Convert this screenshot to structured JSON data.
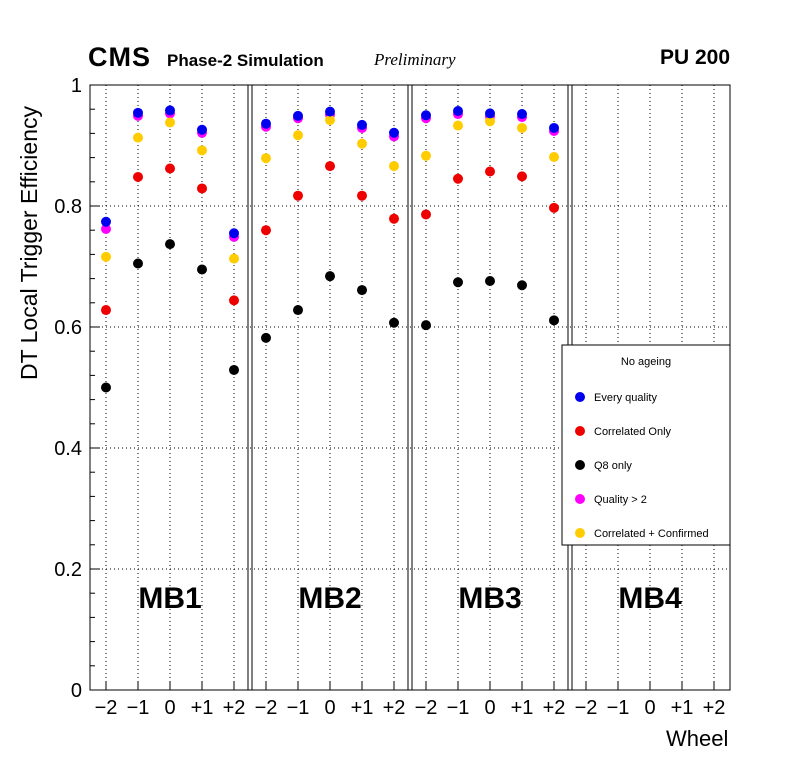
{
  "header": {
    "cms": "CMS",
    "subtitle": "Phase-2 Simulation",
    "preliminary": "Preliminary",
    "pileup": "PU 200"
  },
  "axes": {
    "y_title": "DT Local Trigger Efficiency",
    "x_title": "Wheel",
    "y_tick_values": [
      0,
      0.2,
      0.4,
      0.6,
      0.8,
      1
    ],
    "y_tick_labels": [
      "0",
      "0.2",
      "0.4",
      "0.6",
      "0.8",
      "1"
    ],
    "x_tick_labels": [
      "−2",
      "−1",
      "0",
      "+1",
      "+2"
    ]
  },
  "chart_data": {
    "type": "scatter",
    "title": "CMS Phase-2 Simulation Preliminary PU 200",
    "xlabel": "Wheel",
    "ylabel": "DT Local Trigger Efficiency",
    "ylim": [
      0,
      1
    ],
    "grid": true,
    "panels": [
      "MB1",
      "MB2",
      "MB3",
      "MB4"
    ],
    "x_categories": [
      "−2",
      "−1",
      "0",
      "+1",
      "+2"
    ],
    "legend": {
      "header": "No ageing",
      "position": "right-middle"
    },
    "series": [
      {
        "name": "Every quality",
        "color": "#0000ee",
        "values": {
          "MB1": [
            0.774,
            0.954,
            0.958,
            0.926,
            0.755
          ],
          "MB2": [
            0.936,
            0.949,
            0.956,
            0.934,
            0.921
          ],
          "MB3": [
            0.95,
            0.957,
            0.953,
            0.952,
            0.929
          ],
          "MB4": []
        }
      },
      {
        "name": "Correlated Only",
        "color": "#ee0000",
        "values": {
          "MB1": [
            0.628,
            0.848,
            0.862,
            0.829,
            0.644
          ],
          "MB2": [
            0.76,
            0.817,
            0.866,
            0.817,
            0.779
          ],
          "MB3": [
            0.786,
            0.845,
            0.857,
            0.849,
            0.797
          ],
          "MB4": []
        }
      },
      {
        "name": "Q8 only",
        "color": "#000000",
        "values": {
          "MB1": [
            0.5,
            0.705,
            0.737,
            0.695,
            0.529
          ],
          "MB2": [
            0.582,
            0.628,
            0.684,
            0.661,
            0.607
          ],
          "MB3": [
            0.603,
            0.674,
            0.676,
            0.669,
            0.611
          ],
          "MB4": []
        }
      },
      {
        "name": "Quality > 2",
        "color": "#ff00ff",
        "values": {
          "MB1": [
            0.762,
            0.949,
            0.953,
            0.921,
            0.749
          ],
          "MB2": [
            0.931,
            0.945,
            0.951,
            0.929,
            0.915
          ],
          "MB3": [
            0.945,
            0.952,
            0.948,
            0.947,
            0.924
          ],
          "MB4": []
        }
      },
      {
        "name": "Correlated + Confirmed",
        "color": "#ffcc00",
        "values": {
          "MB1": [
            0.716,
            0.913,
            0.938,
            0.892,
            0.713
          ],
          "MB2": [
            0.879,
            0.917,
            0.942,
            0.903,
            0.866
          ],
          "MB3": [
            0.883,
            0.933,
            0.94,
            0.929,
            0.881
          ],
          "MB4": []
        }
      }
    ]
  }
}
